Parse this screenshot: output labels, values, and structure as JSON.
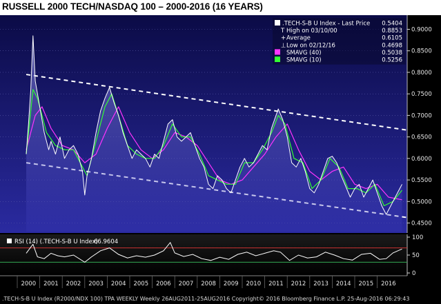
{
  "title": "RUSSELL 2000 TECH/NASDAQ 100 – 2000-2016 (16 YEARS)",
  "chart_data": {
    "type": "line",
    "title": "RUSSELL 2000 TECH/NASDAQ 100 – 2000-2016 (16 YEARS)",
    "x_labels": [
      "2000",
      "2001",
      "2002",
      "2003",
      "2004",
      "2005",
      "2006",
      "2007",
      "2008",
      "2009",
      "2010",
      "2011",
      "2012",
      "2013",
      "2014",
      "2015",
      "2016"
    ],
    "ylim": [
      0.43,
      0.92
    ],
    "y_ticks": [
      "0.9000",
      "0.8500",
      "0.8000",
      "0.7500",
      "0.7000",
      "0.6500",
      "0.6000",
      "0.5500",
      "0.5000",
      "0.4500"
    ],
    "series": [
      {
        "name": ".TECH-S-B U Index - Last Price",
        "last": "0.5404",
        "color": "#ffffff",
        "points": [
          [
            1999.9,
            0.61
          ],
          [
            2000.0,
            0.68
          ],
          [
            2000.1,
            0.76
          ],
          [
            2000.2,
            0.885
          ],
          [
            2000.3,
            0.78
          ],
          [
            2000.5,
            0.72
          ],
          [
            2000.7,
            0.66
          ],
          [
            2000.9,
            0.62
          ],
          [
            2001.0,
            0.64
          ],
          [
            2001.2,
            0.61
          ],
          [
            2001.4,
            0.65
          ],
          [
            2001.6,
            0.6
          ],
          [
            2001.8,
            0.62
          ],
          [
            2002.0,
            0.63
          ],
          [
            2002.2,
            0.61
          ],
          [
            2002.4,
            0.57
          ],
          [
            2002.5,
            0.515
          ],
          [
            2002.6,
            0.56
          ],
          [
            2002.8,
            0.6
          ],
          [
            2003.0,
            0.66
          ],
          [
            2003.2,
            0.71
          ],
          [
            2003.4,
            0.74
          ],
          [
            2003.6,
            0.765
          ],
          [
            2003.8,
            0.73
          ],
          [
            2004.0,
            0.7
          ],
          [
            2004.2,
            0.66
          ],
          [
            2004.4,
            0.63
          ],
          [
            2004.6,
            0.6
          ],
          [
            2004.8,
            0.62
          ],
          [
            2005.0,
            0.61
          ],
          [
            2005.2,
            0.6
          ],
          [
            2005.4,
            0.58
          ],
          [
            2005.6,
            0.61
          ],
          [
            2005.8,
            0.6
          ],
          [
            2006.0,
            0.64
          ],
          [
            2006.2,
            0.68
          ],
          [
            2006.4,
            0.69
          ],
          [
            2006.6,
            0.65
          ],
          [
            2006.8,
            0.64
          ],
          [
            2007.0,
            0.65
          ],
          [
            2007.2,
            0.66
          ],
          [
            2007.4,
            0.63
          ],
          [
            2007.6,
            0.6
          ],
          [
            2007.8,
            0.58
          ],
          [
            2008.0,
            0.54
          ],
          [
            2008.2,
            0.53
          ],
          [
            2008.4,
            0.56
          ],
          [
            2008.6,
            0.55
          ],
          [
            2008.8,
            0.53
          ],
          [
            2009.0,
            0.52
          ],
          [
            2009.2,
            0.55
          ],
          [
            2009.4,
            0.58
          ],
          [
            2009.6,
            0.6
          ],
          [
            2009.8,
            0.58
          ],
          [
            2010.0,
            0.59
          ],
          [
            2010.2,
            0.61
          ],
          [
            2010.4,
            0.63
          ],
          [
            2010.6,
            0.62
          ],
          [
            2010.8,
            0.67
          ],
          [
            2011.0,
            0.7
          ],
          [
            2011.1,
            0.715
          ],
          [
            2011.3,
            0.69
          ],
          [
            2011.5,
            0.65
          ],
          [
            2011.7,
            0.59
          ],
          [
            2011.9,
            0.58
          ],
          [
            2012.1,
            0.6
          ],
          [
            2012.3,
            0.57
          ],
          [
            2012.5,
            0.53
          ],
          [
            2012.7,
            0.52
          ],
          [
            2012.9,
            0.54
          ],
          [
            2013.1,
            0.57
          ],
          [
            2013.3,
            0.6
          ],
          [
            2013.5,
            0.605
          ],
          [
            2013.7,
            0.59
          ],
          [
            2013.9,
            0.56
          ],
          [
            2014.1,
            0.535
          ],
          [
            2014.3,
            0.51
          ],
          [
            2014.5,
            0.53
          ],
          [
            2014.7,
            0.54
          ],
          [
            2014.9,
            0.51
          ],
          [
            2015.1,
            0.53
          ],
          [
            2015.3,
            0.55
          ],
          [
            2015.5,
            0.52
          ],
          [
            2015.7,
            0.49
          ],
          [
            2015.9,
            0.47
          ],
          [
            2016.1,
            0.49
          ],
          [
            2016.3,
            0.51
          ],
          [
            2016.5,
            0.53
          ],
          [
            2016.6,
            0.54
          ]
        ]
      },
      {
        "name": "SMAVG (40)",
        "last": "0.5038",
        "color": "#ff33ff",
        "points": [
          [
            1999.9,
            0.62
          ],
          [
            2000.3,
            0.7
          ],
          [
            2000.6,
            0.72
          ],
          [
            2001.0,
            0.67
          ],
          [
            2001.5,
            0.63
          ],
          [
            2002.0,
            0.62
          ],
          [
            2002.5,
            0.59
          ],
          [
            2003.0,
            0.61
          ],
          [
            2003.5,
            0.67
          ],
          [
            2004.0,
            0.72
          ],
          [
            2004.5,
            0.66
          ],
          [
            2005.0,
            0.62
          ],
          [
            2005.5,
            0.6
          ],
          [
            2006.0,
            0.62
          ],
          [
            2006.5,
            0.66
          ],
          [
            2007.0,
            0.65
          ],
          [
            2007.5,
            0.63
          ],
          [
            2008.0,
            0.59
          ],
          [
            2008.5,
            0.55
          ],
          [
            2009.0,
            0.54
          ],
          [
            2009.5,
            0.55
          ],
          [
            2010.0,
            0.58
          ],
          [
            2010.5,
            0.61
          ],
          [
            2011.0,
            0.65
          ],
          [
            2011.5,
            0.68
          ],
          [
            2012.0,
            0.62
          ],
          [
            2012.5,
            0.57
          ],
          [
            2013.0,
            0.55
          ],
          [
            2013.5,
            0.57
          ],
          [
            2014.0,
            0.58
          ],
          [
            2014.5,
            0.54
          ],
          [
            2015.0,
            0.53
          ],
          [
            2015.5,
            0.54
          ],
          [
            2016.0,
            0.51
          ],
          [
            2016.6,
            0.504
          ]
        ]
      },
      {
        "name": "SMAVG (10)",
        "last": "0.5256",
        "color": "#33ff33",
        "points": [
          [
            1999.9,
            0.61
          ],
          [
            2000.2,
            0.76
          ],
          [
            2000.4,
            0.74
          ],
          [
            2000.8,
            0.66
          ],
          [
            2001.2,
            0.63
          ],
          [
            2001.6,
            0.62
          ],
          [
            2002.0,
            0.62
          ],
          [
            2002.4,
            0.58
          ],
          [
            2002.6,
            0.56
          ],
          [
            2003.0,
            0.64
          ],
          [
            2003.4,
            0.72
          ],
          [
            2003.7,
            0.75
          ],
          [
            2004.0,
            0.7
          ],
          [
            2004.4,
            0.63
          ],
          [
            2004.8,
            0.61
          ],
          [
            2005.2,
            0.6
          ],
          [
            2005.6,
            0.6
          ],
          [
            2006.0,
            0.63
          ],
          [
            2006.4,
            0.68
          ],
          [
            2006.8,
            0.65
          ],
          [
            2007.2,
            0.65
          ],
          [
            2007.6,
            0.61
          ],
          [
            2008.0,
            0.56
          ],
          [
            2008.4,
            0.55
          ],
          [
            2008.8,
            0.54
          ],
          [
            2009.2,
            0.54
          ],
          [
            2009.6,
            0.59
          ],
          [
            2010.0,
            0.59
          ],
          [
            2010.4,
            0.62
          ],
          [
            2010.8,
            0.66
          ],
          [
            2011.1,
            0.7
          ],
          [
            2011.4,
            0.68
          ],
          [
            2011.8,
            0.6
          ],
          [
            2012.2,
            0.59
          ],
          [
            2012.6,
            0.53
          ],
          [
            2013.0,
            0.55
          ],
          [
            2013.4,
            0.6
          ],
          [
            2013.8,
            0.58
          ],
          [
            2014.2,
            0.53
          ],
          [
            2014.6,
            0.53
          ],
          [
            2015.0,
            0.52
          ],
          [
            2015.4,
            0.54
          ],
          [
            2015.8,
            0.49
          ],
          [
            2016.2,
            0.5
          ],
          [
            2016.6,
            0.526
          ]
        ]
      }
    ],
    "channel": {
      "upper": [
        [
          1999.9,
          0.795
        ],
        [
          2016.8,
          0.666
        ]
      ],
      "lower": [
        [
          1999.9,
          0.59
        ],
        [
          2016.8,
          0.463
        ]
      ]
    },
    "legend": {
      "placement": "top-right",
      "items": [
        {
          "label": ".TECH-S-B U Index - Last Price",
          "value": "0.5404",
          "color": "#ffffff"
        },
        {
          "label": "High on 03/10/00",
          "value": "0.8853",
          "color": ""
        },
        {
          "label": "Average",
          "value": "0.6105",
          "color": ""
        },
        {
          "label": "Low on 02/12/16",
          "value": "0.4698",
          "color": ""
        },
        {
          "label": "SMAVG (40)",
          "value": "0.5038",
          "color": "#ff33ff"
        },
        {
          "label": "SMAVG (10)",
          "value": "0.5256",
          "color": "#33ff33"
        }
      ]
    }
  },
  "rsi": {
    "label": "RSI (14) (.TECH-S-B U Index)",
    "value": "66.9604",
    "ylim": [
      0,
      100
    ],
    "y_ticks": [
      "100",
      "50",
      "0"
    ],
    "levels": [
      70,
      30
    ],
    "points": [
      [
        1999.9,
        55
      ],
      [
        2000.1,
        72
      ],
      [
        2000.2,
        80
      ],
      [
        2000.4,
        45
      ],
      [
        2000.7,
        40
      ],
      [
        2001.0,
        55
      ],
      [
        2001.3,
        48
      ],
      [
        2001.6,
        45
      ],
      [
        2002.0,
        50
      ],
      [
        2002.5,
        30
      ],
      [
        2002.8,
        45
      ],
      [
        2003.2,
        62
      ],
      [
        2003.6,
        70
      ],
      [
        2004.0,
        52
      ],
      [
        2004.4,
        42
      ],
      [
        2004.8,
        48
      ],
      [
        2005.2,
        44
      ],
      [
        2005.6,
        50
      ],
      [
        2006.0,
        62
      ],
      [
        2006.3,
        85
      ],
      [
        2006.5,
        56
      ],
      [
        2006.9,
        46
      ],
      [
        2007.3,
        52
      ],
      [
        2007.7,
        40
      ],
      [
        2008.1,
        35
      ],
      [
        2008.5,
        44
      ],
      [
        2008.9,
        38
      ],
      [
        2009.3,
        52
      ],
      [
        2009.7,
        58
      ],
      [
        2010.1,
        48
      ],
      [
        2010.5,
        55
      ],
      [
        2010.9,
        62
      ],
      [
        2011.2,
        58
      ],
      [
        2011.6,
        35
      ],
      [
        2012.0,
        50
      ],
      [
        2012.4,
        42
      ],
      [
        2012.8,
        45
      ],
      [
        2013.2,
        58
      ],
      [
        2013.6,
        50
      ],
      [
        2014.0,
        40
      ],
      [
        2014.4,
        36
      ],
      [
        2014.8,
        52
      ],
      [
        2015.2,
        55
      ],
      [
        2015.6,
        38
      ],
      [
        2015.9,
        40
      ],
      [
        2016.2,
        56
      ],
      [
        2016.6,
        66.96
      ]
    ]
  },
  "footer": ".TECH-S-B U Index (R2000/NDX 100) TPA WEEKLY  Weekly 26AUG2011-25AUG2016 Copyright© 2016 Bloomberg Finance L.P. 25-Aug-2016 06:29:43"
}
